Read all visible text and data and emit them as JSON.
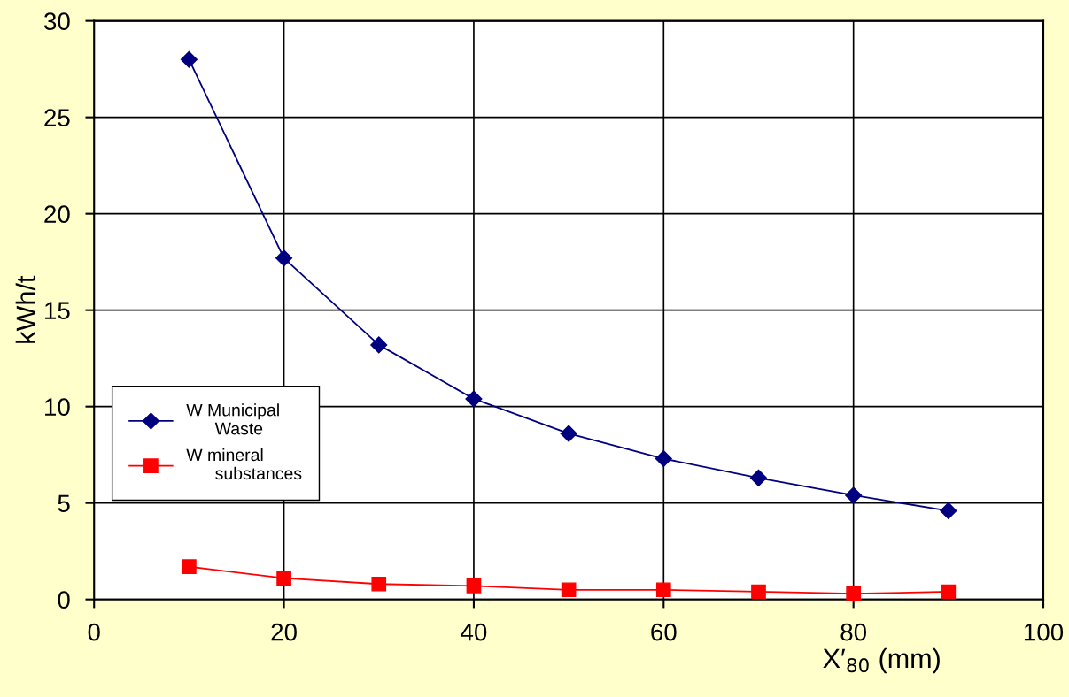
{
  "chart_data": {
    "type": "line",
    "xlabel": "X′$_{80}$ (mm)",
    "ylabel": "kWh/t",
    "x": [
      10,
      20,
      30,
      40,
      50,
      60,
      70,
      80,
      90
    ],
    "series": [
      {
        "name": "W Municipal\n      Waste",
        "color": "#000080",
        "marker": "diamond",
        "values": [
          28.0,
          17.7,
          13.2,
          10.4,
          8.6,
          7.3,
          6.3,
          5.4,
          4.6
        ]
      },
      {
        "name": "W mineral\n      substances",
        "color": "#ff0000",
        "marker": "square",
        "values": [
          1.7,
          1.1,
          0.8,
          0.7,
          0.5,
          0.5,
          0.4,
          0.3,
          0.4
        ]
      }
    ],
    "xlim": [
      0,
      100
    ],
    "xticks": [
      0,
      20,
      40,
      60,
      80,
      100
    ],
    "ylim": [
      0,
      30
    ],
    "yticks": [
      0,
      5,
      10,
      15,
      20,
      25,
      30
    ],
    "grid": true,
    "legend": "left",
    "line_style": "solid"
  }
}
